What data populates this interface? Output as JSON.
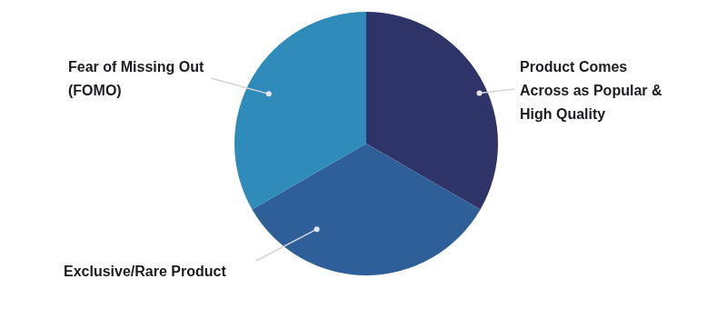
{
  "chart_data": {
    "type": "pie",
    "categories": [
      "Product Comes Across as Popular & High Quality",
      "Exclusive/Rare Product",
      "Fear of Missing Out (FOMO)"
    ],
    "values": [
      33.3,
      33.3,
      33.3
    ],
    "colors": [
      "#2f3468",
      "#2e5f98",
      "#2e8bba"
    ]
  }
}
